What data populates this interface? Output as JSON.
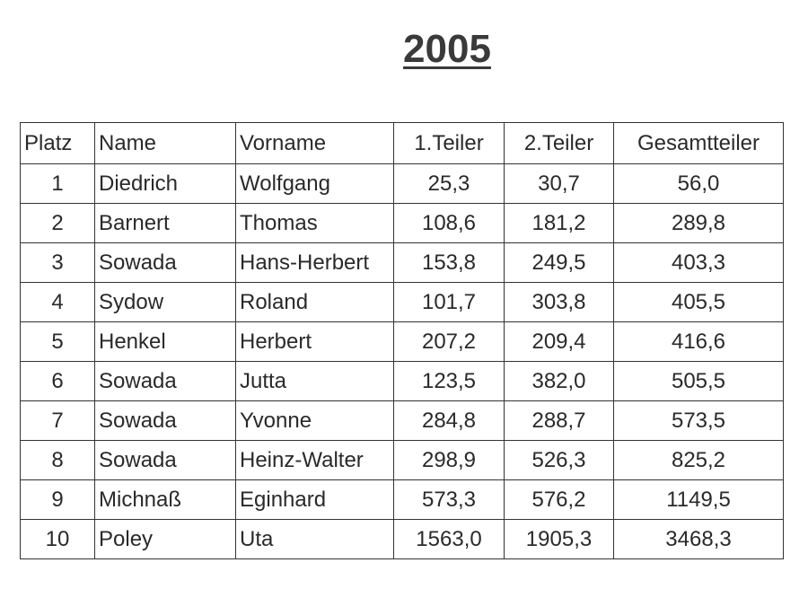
{
  "header": {
    "title": "2005"
  },
  "table": {
    "columns": [
      "Platz",
      "Name",
      "Vorname",
      "1.Teiler",
      "2.Teiler",
      "Gesamtteiler"
    ],
    "rows": [
      [
        "1",
        "Diedrich",
        "Wolfgang",
        "25,3",
        "30,7",
        "56,0"
      ],
      [
        "2",
        "Barnert",
        "Thomas",
        "108,6",
        "181,2",
        "289,8"
      ],
      [
        "3",
        "Sowada",
        "Hans-Herbert",
        "153,8",
        "249,5",
        "403,3"
      ],
      [
        "4",
        "Sydow",
        "Roland",
        "101,7",
        "303,8",
        "405,5"
      ],
      [
        "5",
        "Henkel",
        "Herbert",
        "207,2",
        "209,4",
        "416,6"
      ],
      [
        "6",
        "Sowada",
        "Jutta",
        "123,5",
        "382,0",
        "505,5"
      ],
      [
        "7",
        "Sowada",
        "Yvonne",
        "284,8",
        "288,7",
        "573,5"
      ],
      [
        "8",
        "Sowada",
        "Heinz-Walter",
        "298,9",
        "526,3",
        "825,2"
      ],
      [
        "9",
        "Michnaß",
        "Eginhard",
        "573,3",
        "576,2",
        "1149,5"
      ],
      [
        "10",
        "Poley",
        "Uta",
        "1563,0",
        "1905,3",
        "3468,3"
      ]
    ]
  }
}
